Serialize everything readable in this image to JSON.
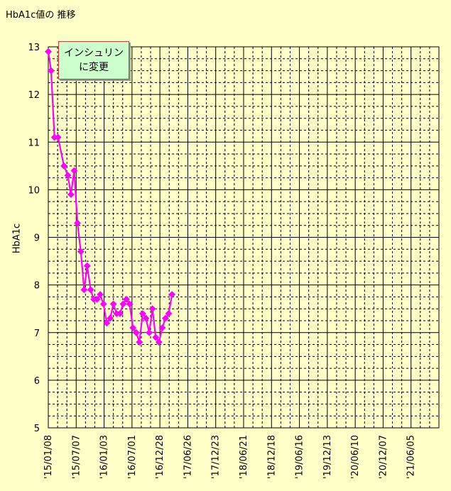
{
  "chart_data": {
    "type": "line",
    "title": "HbA1c値の 推移",
    "ylabel": "HbA1c",
    "xlabel": "",
    "ylim": [
      5,
      13
    ],
    "yticks": [
      5,
      6,
      7,
      8,
      9,
      10,
      11,
      12,
      13
    ],
    "x_tick_labels": [
      "'15/01/08",
      "'15/07/07",
      "'16/01/03",
      "'16/07/01",
      "'16/12/28",
      "'17/06/26",
      "'17/12/23",
      "'18/06/21",
      "'18/12/18",
      "'19/06/16",
      "'19/12/13",
      "'20/06/10",
      "'20/12/07",
      "'21/06/05"
    ],
    "x_tick_interval_days": 180,
    "xlim": [
      "2015-01-08",
      "2021-12-02"
    ],
    "grid": true,
    "series": [
      {
        "color": "#FF00FF",
        "x": [
          "2015-01-08",
          "2015-01-26",
          "2015-02-17",
          "2015-03-12",
          "2015-04-19",
          "2015-05-14",
          "2015-06-03",
          "2015-06-24",
          "2015-07-15",
          "2015-08-06",
          "2015-08-27",
          "2015-09-16",
          "2015-10-08",
          "2015-10-29",
          "2015-11-18",
          "2015-12-09",
          "2015-12-30",
          "2016-01-20",
          "2016-02-11",
          "2016-03-03",
          "2016-03-24",
          "2016-04-14",
          "2016-05-05",
          "2016-05-26",
          "2016-06-16",
          "2016-07-07",
          "2016-07-28",
          "2016-08-18",
          "2016-09-08",
          "2016-09-29",
          "2016-10-20",
          "2016-11-10",
          "2016-12-01",
          "2016-12-22",
          "2017-01-12",
          "2017-02-02",
          "2017-02-23",
          "2017-03-16",
          "2017-04-06",
          "2017-04-27",
          "2017-05-18",
          "2017-06-08",
          "2017-06-29",
          "2017-07-20",
          "2017-08-10",
          "2017-08-31",
          "2017-09-21",
          "2017-10-12",
          "2017-11-02",
          "2017-11-23",
          "2017-12-14",
          "2018-01-04",
          "2018-01-25",
          "2018-02-15",
          "2018-03-08",
          "2018-03-29",
          "2018-04-19",
          "2018-05-10",
          "2018-05-31",
          "2018-06-21"
        ],
        "values": [
          12.9,
          12.5,
          11.1,
          11.1,
          10.5,
          10.3,
          9.9,
          10.4,
          9.3,
          8.7,
          7.9,
          8.4,
          7.9,
          7.7,
          7.7,
          7.8,
          7.6,
          7.2,
          7.3,
          7.6,
          7.4,
          7.4,
          7.6,
          7.7,
          7.6,
          7.1,
          7.0,
          6.8,
          7.4,
          7.3,
          7.0,
          7.5,
          6.9,
          6.8,
          7.1,
          7.3,
          7.4,
          7.8,
          null,
          null,
          null,
          null,
          null,
          null,
          null,
          null,
          null,
          null,
          null,
          null,
          null,
          null,
          null,
          null,
          null,
          null,
          null,
          null,
          null,
          null
        ]
      }
    ],
    "annotation": [
      "インシュリン",
      "に変更"
    ]
  }
}
